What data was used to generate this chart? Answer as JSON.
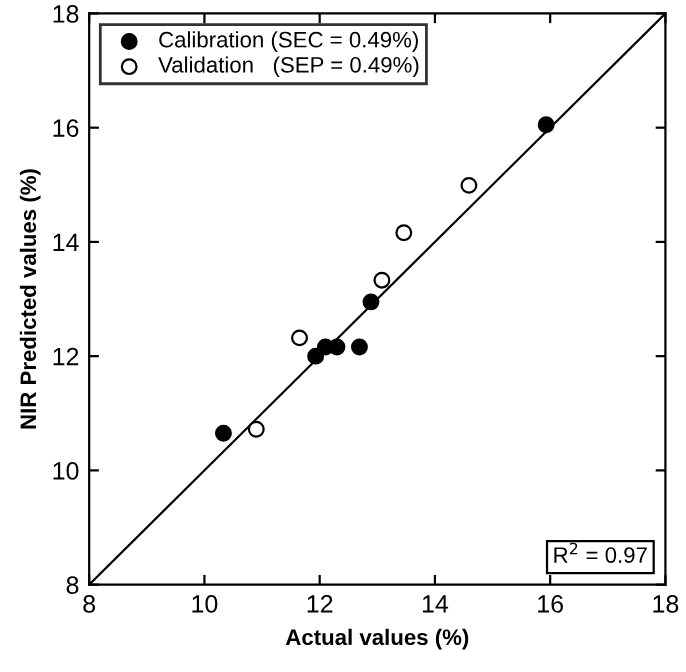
{
  "chart_data": {
    "type": "scatter",
    "xlabel": "Actual values (%)",
    "ylabel": "NIR Predicted values (%)",
    "series": [
      {
        "name": "Calibration (SEC = 0.49%)",
        "color": "#000000",
        "marker": "circle",
        "x": [
          10.33,
          11.93,
          12.1,
          12.3,
          12.69,
          12.89,
          15.93
        ],
        "values": [
          10.65,
          12.0,
          12.16,
          12.16,
          12.16,
          12.95,
          16.05
        ]
      },
      {
        "name": "Validation   (SEP = 0.49%)",
        "color": "#ffffff",
        "marker": "circle",
        "x": [
          10.9,
          11.65,
          13.08,
          13.46,
          14.59
        ],
        "values": [
          10.72,
          12.32,
          13.33,
          14.16,
          14.99
        ]
      },
      {
        "type": "line",
        "color": "#000000",
        "marker": "none",
        "x": [
          8,
          18
        ],
        "values": [
          8,
          18
        ]
      }
    ],
    "annotations": [
      "R$^{2}$ = 0.97"
    ],
    "xlim": [
      8,
      18
    ],
    "ylim": [
      8,
      18
    ],
    "xticks": [
      8,
      10,
      12,
      14,
      16,
      18
    ],
    "yticks": [
      8,
      10,
      12,
      14,
      16,
      18
    ],
    "legend": "top left",
    "grid": false
  }
}
